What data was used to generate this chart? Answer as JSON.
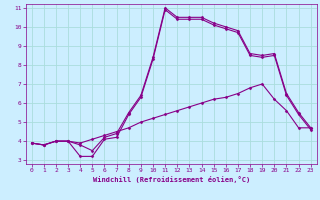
{
  "xlabel": "Windchill (Refroidissement éolien,°C)",
  "bg_color": "#cceeff",
  "grid_color": "#aadddd",
  "line_color": "#880088",
  "xlim": [
    -0.5,
    23.5
  ],
  "ylim": [
    2.8,
    11.2
  ],
  "xticks": [
    0,
    1,
    2,
    3,
    4,
    5,
    6,
    7,
    8,
    9,
    10,
    11,
    12,
    13,
    14,
    15,
    16,
    17,
    18,
    19,
    20,
    21,
    22,
    23
  ],
  "yticks": [
    3,
    4,
    5,
    6,
    7,
    8,
    9,
    10,
    11
  ],
  "series": [
    {
      "x": [
        0,
        1,
        2,
        3,
        4,
        5,
        6,
        7,
        8,
        9,
        10,
        11,
        12,
        13,
        14,
        15,
        16,
        17,
        18,
        19,
        20,
        21,
        22,
        23
      ],
      "y": [
        3.9,
        3.8,
        4.0,
        4.0,
        3.9,
        4.1,
        4.3,
        4.5,
        4.7,
        5.0,
        5.2,
        5.4,
        5.6,
        5.8,
        6.0,
        6.2,
        6.3,
        6.5,
        6.8,
        7.0,
        6.2,
        5.6,
        4.7,
        4.7
      ]
    },
    {
      "x": [
        0,
        1,
        2,
        3,
        4,
        5,
        6,
        7,
        8,
        9,
        10,
        11,
        12,
        13,
        14,
        15,
        16,
        17,
        18,
        19,
        20,
        21,
        22,
        23
      ],
      "y": [
        3.9,
        3.8,
        4.0,
        4.0,
        3.8,
        3.5,
        4.2,
        4.4,
        5.5,
        6.4,
        8.4,
        11.0,
        10.5,
        10.5,
        10.5,
        10.2,
        10.0,
        9.8,
        8.6,
        8.5,
        8.6,
        6.5,
        5.5,
        4.7
      ]
    },
    {
      "x": [
        0,
        1,
        2,
        3,
        4,
        5,
        6,
        7,
        8,
        9,
        10,
        11,
        12,
        13,
        14,
        15,
        16,
        17,
        18,
        19,
        20,
        21,
        22,
        23
      ],
      "y": [
        3.9,
        3.8,
        4.0,
        4.0,
        3.2,
        3.2,
        4.1,
        4.2,
        5.4,
        6.3,
        8.3,
        10.9,
        10.4,
        10.4,
        10.4,
        10.1,
        9.9,
        9.7,
        8.5,
        8.4,
        8.5,
        6.4,
        5.4,
        4.6
      ]
    }
  ],
  "marker": "D",
  "markersize": 1.5,
  "linewidth": 0.8,
  "tick_fontsize": 4.5,
  "xlabel_fontsize": 5.0
}
